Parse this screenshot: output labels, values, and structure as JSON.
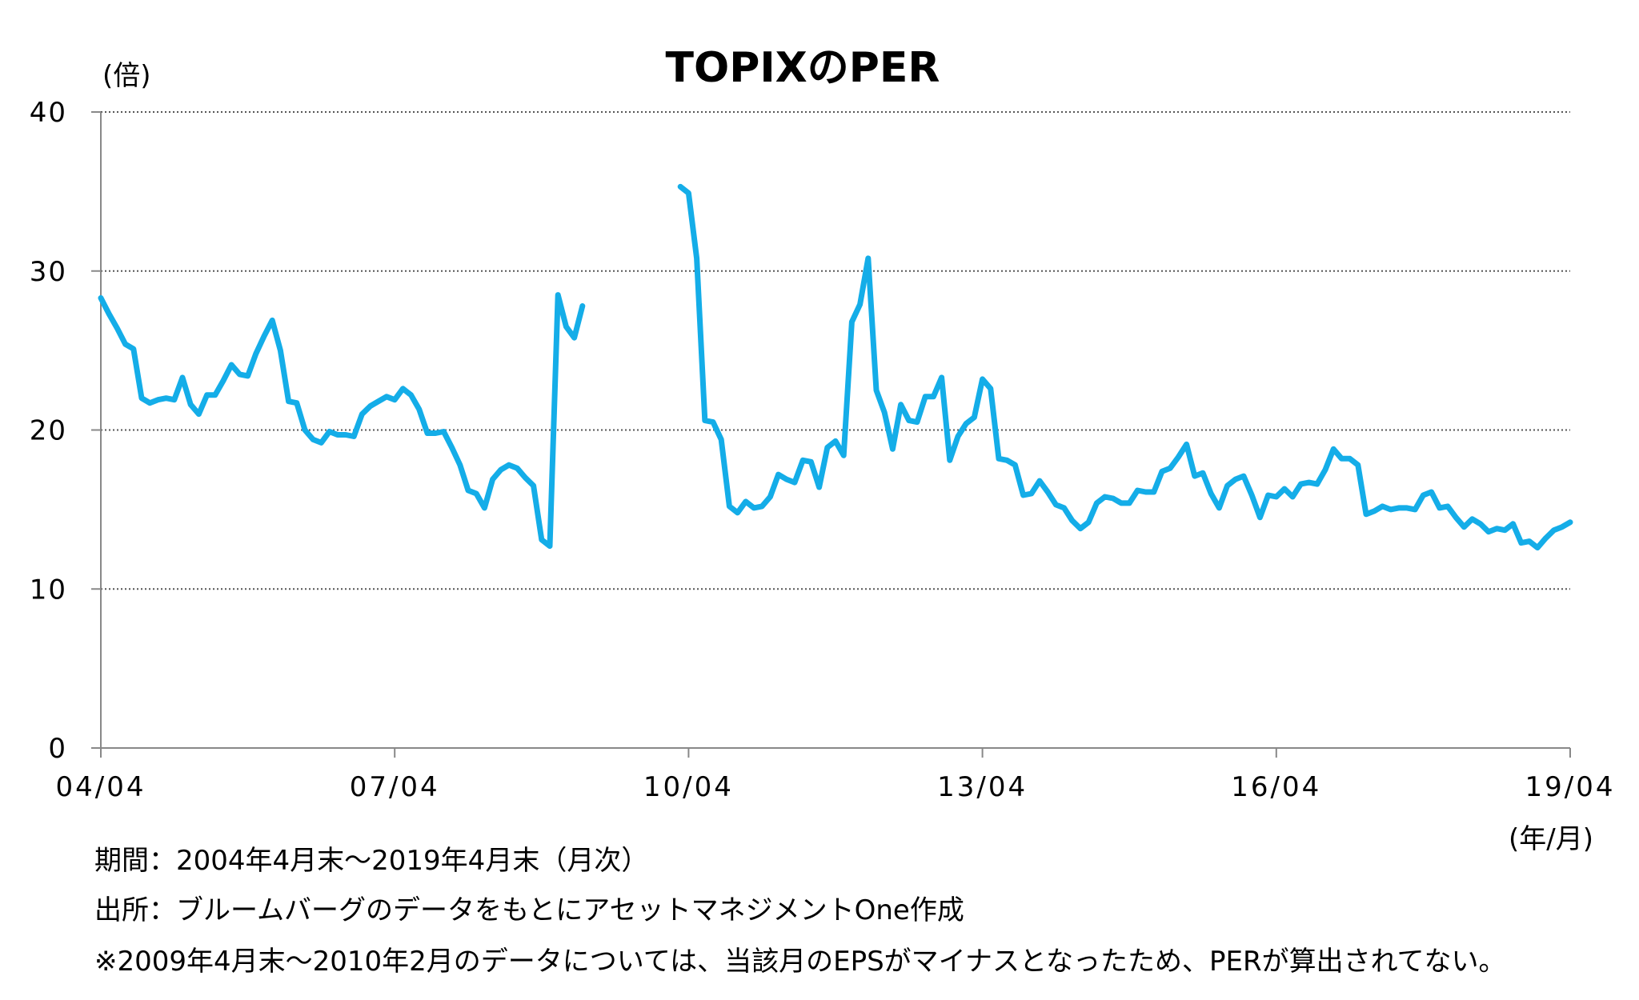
{
  "chart_data": {
    "type": "line",
    "title": "TOPIXのPER",
    "y_unit_label": "(倍)",
    "x_unit_label": "(年/月)",
    "ylim": [
      0,
      40
    ],
    "yticks": [
      "40",
      "30",
      "20",
      "10",
      "0"
    ],
    "xticks": [
      "04/04",
      "07/04",
      "10/04",
      "13/04",
      "16/04",
      "19/04"
    ],
    "grid": true,
    "color": "#14ade8",
    "series": [
      {
        "segments": [
          {
            "start": "2004-04",
            "values": [
              28.3,
              27.3,
              26.4,
              25.4,
              25.1,
              22.0,
              21.7,
              21.9,
              22.0,
              21.9,
              23.3,
              21.6,
              21.0,
              22.2,
              22.2,
              23.1,
              24.1,
              23.5,
              23.4,
              24.8,
              25.9,
              26.9,
              25.0,
              21.8,
              21.7,
              20.0,
              19.4,
              19.2,
              19.9,
              19.7,
              19.7,
              19.6,
              21.0,
              21.5,
              21.8,
              22.1,
              21.9,
              22.6,
              22.2,
              21.3,
              19.8,
              19.8,
              19.9,
              18.9,
              17.8,
              16.2,
              16.0,
              15.1,
              16.9,
              17.5,
              17.8,
              17.6,
              17.0,
              16.5,
              13.1,
              12.7,
              28.5,
              26.5,
              25.8,
              27.8
            ]
          },
          {
            "start": "2010-03",
            "values": [
              35.3,
              34.9,
              30.8,
              20.6,
              20.5,
              19.4,
              15.2,
              14.8,
              15.5,
              15.1,
              15.2,
              15.8,
              17.2,
              16.9,
              16.7,
              18.1,
              18.0,
              16.4,
              18.9,
              19.3,
              18.4,
              26.8,
              27.9,
              30.8,
              22.5,
              21.1,
              18.8,
              21.6,
              20.6,
              20.5,
              22.1,
              22.1,
              23.3,
              18.1,
              19.6,
              20.4,
              20.8,
              23.2,
              22.6,
              18.2,
              18.1,
              17.8,
              15.9,
              16.0,
              16.8,
              16.1,
              15.3,
              15.1,
              14.3,
              13.8,
              14.2,
              15.4,
              15.8,
              15.7,
              15.4,
              15.4,
              16.2,
              16.1,
              16.1,
              17.4,
              17.6,
              18.3,
              19.1,
              17.1,
              17.3,
              16.0,
              15.1,
              16.5,
              16.9,
              17.1,
              15.9,
              14.5,
              15.9,
              15.8,
              16.3,
              15.8,
              16.6,
              16.7,
              16.6,
              17.5,
              18.8,
              18.2,
              18.2,
              17.8,
              14.7,
              14.9,
              15.2,
              15.0,
              15.1,
              15.1,
              15.0,
              15.9,
              16.1,
              15.1,
              15.2,
              14.5,
              13.9,
              14.4,
              14.1,
              13.6,
              13.8,
              13.7,
              14.1,
              12.9,
              13.0,
              12.6,
              13.2,
              13.7,
              13.9,
              14.2
            ]
          }
        ]
      }
    ]
  },
  "notes": [
    "期間：2004年4月末～2019年4月末（月次）",
    "出所：ブルームバーグのデータをもとにアセットマネジメントOne作成",
    "※2009年4月末～2010年2月のデータについては、当該月のEPSがマイナスとなったため、PERが算出されてない。"
  ]
}
